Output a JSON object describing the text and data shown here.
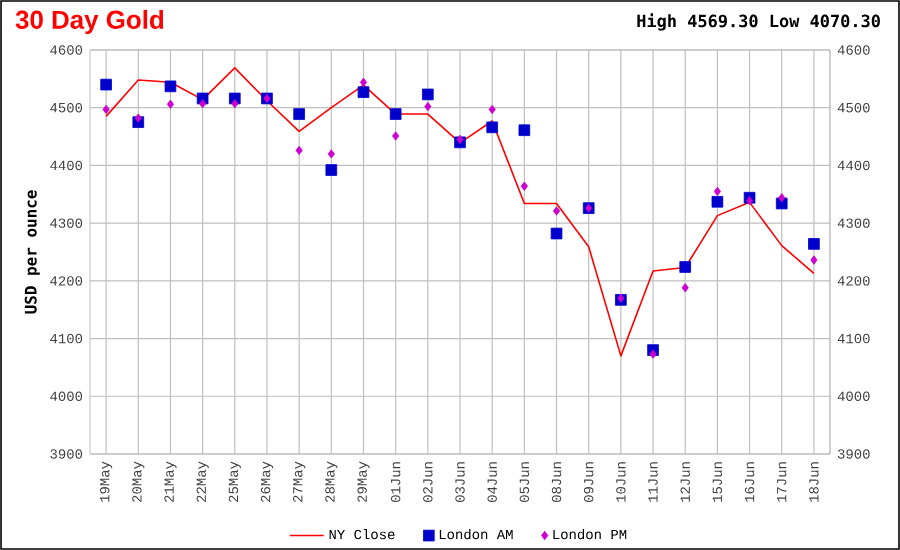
{
  "chart_data": {
    "type": "line",
    "title": "30 Day Gold",
    "subtitle": "High 4569.30 Low 4070.30",
    "ylabel": "USD per ounce",
    "categories": [
      "19May",
      "20May",
      "21May",
      "22May",
      "25May",
      "26May",
      "27May",
      "28May",
      "29May",
      "01Jun",
      "02Jun",
      "03Jun",
      "04Jun",
      "05Jun",
      "08Jun",
      "09Jun",
      "10Jun",
      "11Jun",
      "12Jun",
      "15Jun",
      "16Jun",
      "17Jun",
      "18Jun"
    ],
    "series": [
      {
        "name": "NY Close",
        "marker": "none",
        "color": "#ff0000",
        "values": [
          4485,
          4548,
          4544,
          4514,
          4569,
          4512,
          4459,
          4500,
          4539,
          4489,
          4489,
          4439,
          4477,
          4334,
          4334,
          4259,
          4070,
          4217,
          4223,
          4313,
          4336,
          4261,
          4213
        ]
      },
      {
        "name": "London AM",
        "type": "scatter",
        "marker": "square",
        "color": "#0000cc",
        "values": [
          4540,
          4475,
          4537,
          4516,
          4516,
          4516,
          4489,
          4392,
          4527,
          4489,
          4523,
          4440,
          4466,
          4461,
          4282,
          4326,
          4167,
          4080,
          4224,
          4337,
          4344,
          4334,
          4264
        ]
      },
      {
        "name": "London PM",
        "type": "scatter",
        "marker": "diamond",
        "color": "#cc00cc",
        "values": [
          4497,
          4482,
          4506,
          4507,
          4507,
          4516,
          4426,
          4420,
          4544,
          4451,
          4502,
          4445,
          4497,
          4364,
          4321,
          4326,
          4170,
          4073,
          4188,
          4355,
          4339,
          4344,
          4236
        ]
      }
    ],
    "ylim": [
      3900,
      4600
    ],
    "yticks": [
      3900,
      4000,
      4100,
      4200,
      4300,
      4400,
      4500,
      4600
    ],
    "y2lim": [
      3900,
      4600
    ],
    "y2ticks": [
      3900,
      4000,
      4100,
      4200,
      4300,
      4400,
      4500,
      4600
    ],
    "grid": true,
    "legend": "bottom"
  }
}
